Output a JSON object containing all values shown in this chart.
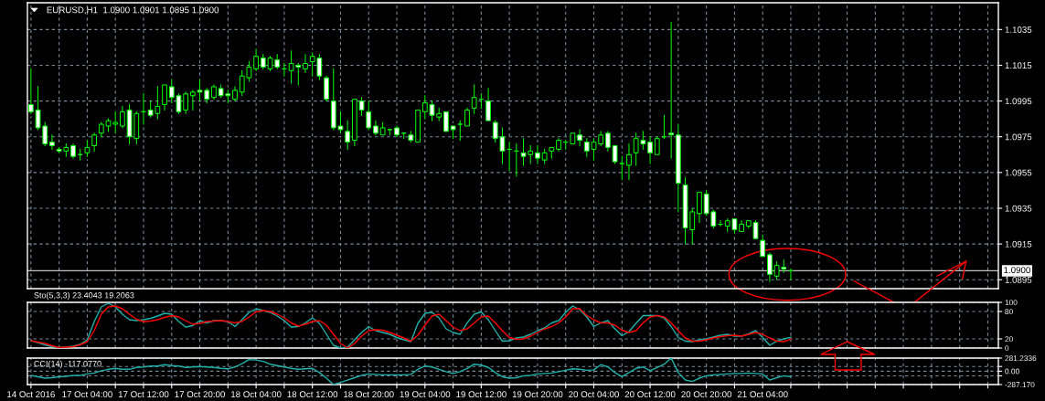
{
  "chart_data": [
    {
      "type": "candlestick",
      "title": "EURUSD,H1  1.0900 1.0901 1.0895 1.0900",
      "color": "#00ff00",
      "categories": [
        null,
        null,
        null,
        null,
        null,
        null,
        null,
        null,
        null,
        null,
        null,
        null,
        null,
        null,
        null,
        null,
        null,
        null,
        null,
        null,
        null,
        null,
        null,
        null,
        null,
        null,
        null,
        null,
        null,
        null,
        null,
        null,
        null,
        null,
        null,
        null,
        null,
        null,
        null,
        null,
        null,
        null,
        null,
        null,
        null,
        null,
        null,
        null,
        null,
        null,
        null,
        null,
        null,
        null,
        null,
        null,
        null,
        null,
        null,
        null,
        null,
        null,
        null,
        null,
        null,
        null,
        null,
        null,
        null,
        null,
        null,
        null,
        null,
        null,
        null,
        null,
        null,
        null,
        null,
        null,
        null,
        null,
        null,
        null,
        null,
        null,
        null,
        null,
        null,
        null,
        null,
        null,
        null,
        null,
        null,
        null,
        null,
        null,
        null,
        null,
        null,
        null,
        null,
        null,
        null,
        null,
        null,
        null,
        null,
        null,
        null,
        null,
        null,
        null,
        null,
        null,
        null,
        null,
        null,
        null,
        null,
        null,
        null,
        null,
        null,
        null,
        null,
        null,
        null,
        null,
        null,
        null,
        null,
        null,
        null,
        null,
        null,
        null
      ],
      "ohlc": [
        [
          1.0993,
          1.1013,
          1.0988,
          1.0989
        ],
        [
          1.099,
          1.1003,
          1.0979,
          1.098
        ],
        [
          1.0981,
          1.0983,
          1.097,
          1.0971
        ],
        [
          1.0972,
          1.0976,
          1.0968,
          1.097
        ],
        [
          1.0968,
          1.0969,
          1.0966,
          1.0967
        ],
        [
          1.0967,
          1.0971,
          1.0964,
          1.0969
        ],
        [
          1.097,
          1.0971,
          1.0963,
          1.0964
        ],
        [
          1.0965,
          1.0968,
          1.0962,
          1.0965
        ],
        [
          1.0966,
          1.0973,
          1.0964,
          1.0969
        ],
        [
          1.097,
          1.0977,
          1.0967,
          1.0976
        ],
        [
          1.0977,
          1.0983,
          1.0975,
          1.0982
        ],
        [
          1.0981,
          1.0985,
          1.0978,
          1.0984
        ],
        [
          1.0982,
          1.0989,
          1.0977,
          1.0983
        ],
        [
          1.0981,
          1.0992,
          1.098,
          1.0989
        ],
        [
          1.099,
          1.0993,
          1.0971,
          1.0975
        ],
        [
          1.0974,
          1.0989,
          1.0971,
          1.0988
        ],
        [
          1.0989,
          1.0999,
          1.0982,
          1.0989
        ],
        [
          1.099,
          1.0995,
          1.0986,
          1.0987
        ],
        [
          1.0988,
          1.1003,
          1.0985,
          1.0992
        ],
        [
          1.0993,
          1.1004,
          1.099,
          1.1004
        ],
        [
          1.1003,
          1.1007,
          1.0994,
          1.0997
        ],
        [
          1.0998,
          1.0999,
          1.0988,
          1.0989
        ],
        [
          1.099,
          1.1,
          1.0988,
          1.0999
        ],
        [
          1.0998,
          1.1001,
          1.099,
          1.1
        ],
        [
          1.1001,
          1.1007,
          1.0995,
          1.1
        ],
        [
          1.1001,
          1.1002,
          1.0994,
          1.0996
        ],
        [
          1.0997,
          1.1004,
          1.0996,
          1.1003
        ],
        [
          1.1002,
          1.1004,
          1.0997,
          1.0998
        ],
        [
          1.0999,
          1.1001,
          1.0994,
          1.0998
        ],
        [
          1.0996,
          1.1003,
          1.0995,
          1.1001
        ],
        [
          1.1,
          1.1012,
          1.0998,
          1.1009
        ],
        [
          1.1008,
          1.1017,
          1.1006,
          1.1014
        ],
        [
          1.1013,
          1.1024,
          1.1012,
          1.102
        ],
        [
          1.1019,
          1.1021,
          1.1013,
          1.1014
        ],
        [
          1.1013,
          1.102,
          1.1012,
          1.1019
        ],
        [
          1.1018,
          1.1021,
          1.1013,
          1.1014
        ],
        [
          1.1013,
          1.1016,
          1.1009,
          1.1013
        ],
        [
          1.1012,
          1.1023,
          1.1005,
          1.1016
        ],
        [
          1.1015,
          1.1016,
          1.1004,
          1.1014
        ],
        [
          1.1013,
          1.1021,
          1.1011,
          1.1016
        ],
        [
          1.1017,
          1.1022,
          1.1009,
          1.102
        ],
        [
          1.1019,
          1.1021,
          1.1007,
          1.1009
        ],
        [
          1.1008,
          1.1009,
          1.0995,
          1.0996
        ],
        [
          1.0995,
          1.1013,
          1.0979,
          1.098
        ],
        [
          1.0981,
          1.0989,
          1.0977,
          1.0979
        ],
        [
          1.0978,
          1.0984,
          1.0968,
          1.0972
        ],
        [
          1.0973,
          1.0996,
          1.097,
          1.0996
        ],
        [
          1.0995,
          1.0997,
          1.0987,
          1.099
        ],
        [
          1.0989,
          1.0995,
          1.0979,
          1.098
        ],
        [
          1.0981,
          1.0984,
          1.0976,
          1.0977
        ],
        [
          1.0976,
          1.0983,
          1.0976,
          1.098
        ],
        [
          1.0979,
          1.0979,
          1.0976,
          1.0979
        ],
        [
          1.098,
          1.0981,
          1.0975,
          1.0976
        ],
        [
          1.0977,
          1.0977,
          1.0974,
          1.0977
        ],
        [
          1.0976,
          1.0978,
          1.0972,
          1.0973
        ],
        [
          1.0972,
          1.099,
          1.0972,
          1.099
        ],
        [
          1.0989,
          1.0998,
          1.0985,
          1.0994
        ],
        [
          1.0993,
          1.0995,
          1.0984,
          1.0987
        ],
        [
          1.0986,
          1.0991,
          1.0984,
          1.0988
        ],
        [
          1.0989,
          1.0989,
          1.0978,
          1.0978
        ],
        [
          1.0981,
          1.0981,
          1.0974,
          1.0979
        ],
        [
          1.0982,
          1.0984,
          1.0973,
          1.0982
        ],
        [
          1.0981,
          1.0991,
          1.0981,
          1.099
        ],
        [
          1.0991,
          1.1004,
          1.0988,
          1.0997
        ],
        [
          1.0996,
          1.0999,
          1.0991,
          1.0996
        ],
        [
          1.0995,
          1.1002,
          1.0984,
          1.0984
        ],
        [
          1.0983,
          1.0984,
          1.0972,
          1.0974
        ],
        [
          1.0975,
          1.098,
          1.096,
          1.0967
        ],
        [
          1.0968,
          1.0972,
          1.0956,
          1.0968
        ],
        [
          1.0967,
          1.0971,
          1.0953,
          1.0967
        ],
        [
          1.0966,
          1.0974,
          1.0959,
          1.0964
        ],
        [
          1.0965,
          1.097,
          1.096,
          1.0967
        ],
        [
          1.0966,
          1.097,
          1.096,
          1.0963
        ],
        [
          1.0962,
          1.0968,
          1.096,
          1.0966
        ],
        [
          1.0967,
          1.0969,
          1.0963,
          1.0969
        ],
        [
          1.0968,
          1.0974,
          1.0967,
          1.0973
        ],
        [
          1.0972,
          1.0973,
          1.0968,
          1.0972
        ],
        [
          1.0971,
          1.0977,
          1.0971,
          1.0977
        ],
        [
          1.0976,
          1.0979,
          1.097,
          1.0973
        ],
        [
          1.0972,
          1.0974,
          1.0964,
          1.0967
        ],
        [
          1.0968,
          1.0974,
          1.0962,
          1.0972
        ],
        [
          1.0971,
          1.0978,
          1.097,
          1.0976
        ],
        [
          1.0977,
          1.0978,
          1.0967,
          1.0969
        ],
        [
          1.097,
          1.097,
          1.096,
          1.0961
        ],
        [
          1.096,
          1.0964,
          1.0951,
          1.096
        ],
        [
          1.0959,
          1.0971,
          1.0951,
          1.0965
        ],
        [
          1.0966,
          1.0977,
          1.0959,
          1.0974
        ],
        [
          1.0973,
          1.0978,
          1.0968,
          1.0971
        ],
        [
          1.0972,
          1.0975,
          1.096,
          1.0966
        ],
        [
          1.0965,
          1.0975,
          1.0965,
          1.0974
        ],
        [
          1.0975,
          1.0987,
          1.0974,
          1.0975
        ],
        [
          1.0977,
          1.1039,
          1.0963,
          1.0976
        ],
        [
          1.0976,
          1.0982,
          1.0933,
          1.0949
        ],
        [
          1.0948,
          1.0952,
          1.0915,
          1.0924
        ],
        [
          1.0923,
          1.0935,
          1.0915,
          1.0933
        ],
        [
          1.0932,
          1.0944,
          1.0927,
          1.0944
        ],
        [
          1.0943,
          1.0945,
          1.0931,
          1.0932
        ],
        [
          1.0933,
          1.0934,
          1.0924,
          1.0925
        ],
        [
          1.0926,
          1.0928,
          1.0925,
          1.0926
        ],
        [
          1.0925,
          1.0929,
          1.0922,
          1.0928
        ],
        [
          1.0929,
          1.0929,
          1.0921,
          1.0923
        ],
        [
          1.0922,
          1.0928,
          1.0922,
          1.0926
        ],
        [
          1.0925,
          1.0928,
          1.0924,
          1.0928
        ],
        [
          1.0927,
          1.0928,
          1.0918,
          1.0918
        ],
        [
          1.0917,
          1.092,
          1.0908,
          1.0908
        ],
        [
          1.0909,
          1.091,
          1.0894,
          1.0898
        ],
        [
          1.0897,
          1.0905,
          1.0895,
          1.0903
        ],
        [
          1.0902,
          1.0906,
          1.0899,
          1.0901
        ],
        [
          1.09,
          1.0901,
          1.0895,
          1.09
        ],
        null,
        null,
        null,
        null,
        null,
        null,
        null,
        null,
        null,
        null,
        null,
        null,
        null,
        null,
        null,
        null,
        null,
        null,
        null,
        null,
        null,
        null,
        null,
        null,
        null,
        null,
        null,
        null,
        null
      ],
      "colors": [
        "#ffffff",
        "#ffffff",
        "#ffffff",
        "#ffffff",
        "#ffffff",
        "#000000",
        "#ffffff",
        "#00ff00",
        "#000000",
        "#000000",
        "#000000",
        "#000000",
        "#000000",
        "#000000",
        "#ffffff",
        "#000000",
        "#00ff00",
        "#ffffff",
        "#000000",
        "#000000",
        "#ffffff",
        "#ffffff",
        "#000000",
        "#000000",
        "#ffffff",
        "#ffffff",
        "#000000",
        "#ffffff",
        "#ffffff",
        "#000000",
        "#000000",
        "#000000",
        "#000000",
        "#ffffff",
        "#000000",
        "#ffffff",
        "#00ff00",
        "#000000",
        "#ffffff",
        "#000000",
        "#000000",
        "#ffffff",
        "#ffffff",
        "#ffffff",
        "#ffffff",
        "#ffffff",
        "#000000",
        "#ffffff",
        "#ffffff",
        "#ffffff",
        "#000000",
        "#00ff00",
        "#ffffff",
        "#00ff00",
        "#ffffff",
        "#000000",
        "#000000",
        "#ffffff",
        "#000000",
        "#ffffff",
        "#ffffff",
        "#00ff00",
        "#000000",
        "#000000",
        "#00ff00",
        "#ffffff",
        "#ffffff",
        "#ffffff",
        "#00ff00",
        "#00ff00",
        "#ffffff",
        "#000000",
        "#ffffff",
        "#000000",
        "#000000",
        "#000000",
        "#00ff00",
        "#000000",
        "#ffffff",
        "#ffffff",
        "#000000",
        "#000000",
        "#ffffff",
        "#ffffff",
        "#00ff00",
        "#000000",
        "#000000",
        "#ffffff",
        "#ffffff",
        "#000000",
        "#00ff00",
        "#ffffff",
        "#ffffff",
        "#ffffff",
        "#000000",
        "#000000",
        "#ffffff",
        "#ffffff",
        "#00ff00",
        "#000000",
        "#ffffff",
        "#000000",
        "#000000",
        "#ffffff",
        "#ffffff",
        "#ffffff",
        "#000000",
        "#ffffff",
        "#00ff00",
        null,
        null,
        null,
        null,
        null,
        null,
        null,
        null,
        null,
        null,
        null,
        null,
        null,
        null,
        null,
        null,
        null,
        null,
        null,
        null,
        null,
        null,
        null,
        null,
        null,
        null,
        null,
        null,
        null
      ],
      "ylim": [
        1.089,
        1.105
      ],
      "yticks": [
        1.0895,
        1.0915,
        1.0935,
        1.0955,
        1.0975,
        1.0995,
        1.1015,
        1.1035
      ],
      "ref_lines": [
        {
          "axis": "y",
          "value": 1.09,
          "label": "1.0900",
          "color": "#c0c0c0"
        }
      ],
      "grid": true,
      "tick_labels": "y"
    },
    {
      "type": "line",
      "title": "Sto(5,3,3) 23.4043 19.2063",
      "categories": [
        null,
        null,
        null,
        null,
        null,
        null,
        null,
        null,
        null,
        null,
        null,
        null,
        null,
        null,
        null,
        null,
        null,
        null,
        null,
        null,
        null,
        null,
        null,
        null,
        null,
        null,
        null,
        null,
        null,
        null,
        null,
        null,
        null,
        null,
        null,
        null,
        null,
        null,
        null,
        null,
        null,
        null,
        null,
        null,
        null,
        null,
        null,
        null,
        null,
        null,
        null,
        null,
        null,
        null,
        null,
        null,
        null,
        null,
        null,
        null,
        null,
        null,
        null,
        null,
        null,
        null,
        null,
        null,
        null,
        null,
        null,
        null,
        null,
        null,
        null,
        null,
        null,
        null,
        null,
        null,
        null,
        null,
        null,
        null,
        null,
        null,
        null,
        null,
        null,
        null,
        null,
        null,
        null,
        null,
        null,
        null,
        null,
        null,
        null,
        null,
        null,
        null,
        null,
        null,
        null,
        null,
        null,
        null,
        null,
        null,
        null,
        null,
        null,
        null,
        null,
        null,
        null,
        null,
        null,
        null,
        null,
        null,
        null,
        null,
        null,
        null,
        null,
        null,
        null,
        null,
        null,
        null,
        null,
        null,
        null,
        null,
        null,
        null
      ],
      "series": [
        {
          "color": "#20b2aa",
          "values": [
            16,
            12,
            7,
            3,
            1,
            2,
            4,
            8,
            18,
            58,
            90,
            98,
            90,
            74,
            62,
            60,
            62,
            65,
            70,
            76,
            74,
            58,
            46,
            49,
            60,
            55,
            60,
            60,
            58,
            47,
            62,
            78,
            86,
            82,
            78,
            70,
            60,
            46,
            47,
            55,
            66,
            54,
            30,
            6,
            0,
            2,
            18,
            34,
            47,
            38,
            34,
            30,
            23,
            18,
            14,
            54,
            76,
            78,
            66,
            42,
            34,
            30,
            55,
            74,
            79,
            62,
            38,
            15,
            16,
            22,
            24,
            30,
            38,
            44,
            55,
            60,
            78,
            92,
            84,
            68,
            47,
            55,
            60,
            42,
            27,
            36,
            54,
            71,
            71,
            71,
            66,
            47,
            23,
            15,
            14,
            18,
            20,
            24,
            28,
            30,
            26,
            26,
            31,
            38,
            23,
            6,
            15,
            20,
            23.4043,
            null,
            null,
            null,
            null,
            null,
            null,
            null,
            null,
            null,
            null,
            null,
            null,
            null,
            null,
            null,
            null,
            null,
            null,
            null,
            null,
            null,
            null,
            null,
            null,
            null,
            null,
            null,
            null,
            null
          ]
        },
        {
          "color": "#ff0000",
          "values": [
            16,
            13,
            10,
            5,
            1,
            2,
            3,
            7,
            14,
            38,
            74,
            90,
            92,
            86,
            74,
            63,
            58,
            59,
            62,
            67,
            71,
            68,
            60,
            52,
            54,
            58,
            59,
            60,
            58,
            55,
            58,
            68,
            79,
            82,
            80,
            74,
            66,
            55,
            48,
            52,
            58,
            60,
            50,
            30,
            10,
            0,
            10,
            26,
            38,
            40,
            39,
            34,
            28,
            22,
            15,
            28,
            50,
            70,
            74,
            60,
            46,
            38,
            42,
            55,
            68,
            70,
            55,
            38,
            23,
            19,
            20,
            26,
            34,
            42,
            47,
            55,
            68,
            86,
            86,
            71,
            62,
            55,
            55,
            50,
            39,
            34,
            38,
            55,
            68,
            71,
            68,
            55,
            38,
            22,
            15,
            15,
            18,
            22,
            25,
            27,
            28,
            26,
            30,
            34,
            30,
            22,
            15,
            14,
            19.2063,
            null,
            null,
            null,
            null,
            null,
            null,
            null,
            null,
            null,
            null,
            null,
            null,
            null,
            null,
            null,
            null,
            null,
            null,
            null,
            null,
            null,
            null,
            null,
            null,
            null,
            null,
            null,
            null,
            null
          ]
        }
      ],
      "ylim": [
        0,
        100
      ],
      "yticks": [
        0,
        20,
        80,
        100
      ],
      "grid": true,
      "tick_labels": "y"
    },
    {
      "type": "line",
      "title": "CCI(14) -117.0770",
      "categories": [
        "14 Oct 2016",
        null,
        null,
        null,
        null,
        null,
        null,
        null,
        "17 Oct 04:00",
        null,
        null,
        null,
        null,
        null,
        null,
        null,
        "17 Oct 12:00",
        null,
        null,
        null,
        null,
        null,
        null,
        null,
        "17 Oct 20:00",
        null,
        null,
        null,
        null,
        null,
        null,
        null,
        "18 Oct 04:00",
        null,
        null,
        null,
        null,
        null,
        null,
        null,
        "18 Oct 12:00",
        null,
        null,
        null,
        null,
        null,
        null,
        null,
        "18 Oct 20:00",
        null,
        null,
        null,
        null,
        null,
        null,
        null,
        "19 Oct 04:00",
        null,
        null,
        null,
        null,
        null,
        null,
        null,
        "19 Oct 12:00",
        null,
        null,
        null,
        null,
        null,
        null,
        null,
        "19 Oct 20:00",
        null,
        null,
        null,
        null,
        null,
        null,
        null,
        "20 Oct 04:00",
        null,
        null,
        null,
        null,
        null,
        null,
        null,
        "20 Oct 12:00",
        null,
        null,
        null,
        null,
        null,
        null,
        null,
        "20 Oct 20:00",
        null,
        null,
        null,
        null,
        null,
        null,
        null,
        "21 Oct 04:00",
        null,
        null,
        null,
        null,
        null,
        null,
        null,
        null,
        null,
        null,
        null,
        null,
        null,
        null,
        null,
        null,
        null,
        null,
        null,
        null,
        null,
        null,
        null,
        null,
        null,
        null,
        null,
        null,
        null,
        null,
        null,
        null,
        null
      ],
      "series": [
        {
          "color": "#20b2aa",
          "values": [
            -90,
            -120,
            -150,
            -140,
            -120,
            -110,
            -90,
            -90,
            -60,
            -40,
            10,
            40,
            60,
            40,
            40,
            80,
            90,
            110,
            110,
            140,
            120,
            110,
            80,
            90,
            100,
            90,
            80,
            60,
            50,
            90,
            160,
            250,
            240,
            210,
            150,
            120,
            90,
            60,
            40,
            50,
            60,
            -30,
            -150,
            -287.17,
            -240,
            -190,
            -140,
            -90,
            -60,
            -70,
            -80,
            -80,
            -80,
            -80,
            -70,
            40,
            110,
            90,
            40,
            -10,
            -50,
            -10,
            60,
            150,
            130,
            80,
            -30,
            -120,
            -150,
            -140,
            -100,
            -90,
            -60,
            -50,
            -40,
            -10,
            20,
            50,
            40,
            20,
            30,
            140,
            90,
            -30,
            -120,
            -30,
            60,
            90,
            10,
            80,
            150,
            281.2336,
            -30,
            -190,
            -220,
            -150,
            -100,
            -80,
            -70,
            -60,
            -50,
            -50,
            -40,
            -50,
            -60,
            -190,
            -140,
            -100,
            -117.077,
            null,
            null,
            null,
            null,
            null,
            null,
            null,
            null,
            null,
            null,
            null,
            null,
            null,
            null,
            null,
            null,
            null,
            null,
            null,
            null,
            null,
            null,
            null,
            null,
            null,
            null,
            null,
            null,
            null
          ]
        }
      ],
      "ylim": [
        -287.17,
        281.2336
      ],
      "yticks": [
        281.2336,
        {
          "value": 100,
          "label": null
        },
        {
          "value": 0,
          "label": "0.00"
        },
        {
          "value": -100,
          "label": null
        },
        {
          "value": -287.17,
          "label": "-287.170"
        }
      ],
      "grid": true
    }
  ]
}
